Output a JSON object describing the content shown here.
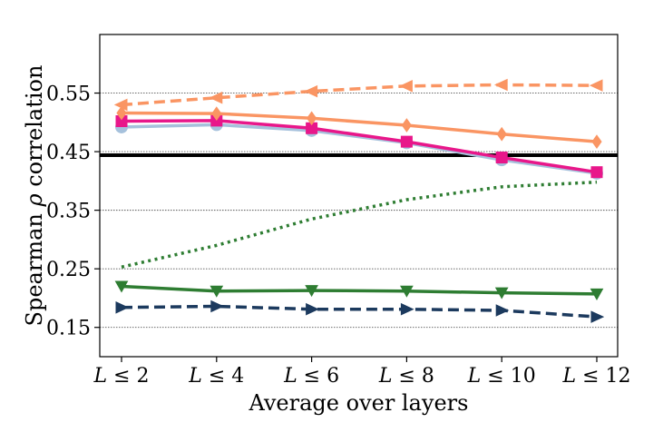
{
  "chart_data": {
    "type": "line",
    "title": "",
    "xlabel": "Average over layers",
    "ylabel_prefix": "Spearman ",
    "ylabel_symbol": "ρ",
    "ylabel_suffix": " correlation",
    "categories": [
      "L ≤ 2",
      "L ≤ 4",
      "L ≤ 6",
      "L ≤ 8",
      "L ≤ 10",
      "L ≤ 12"
    ],
    "ylim": [
      0.1,
      0.65
    ],
    "yticks": [
      0.15,
      0.25,
      0.35,
      0.45,
      0.55
    ],
    "ytick_labels": [
      "0.15",
      "0.25",
      "0.35",
      "0.45",
      "0.55"
    ],
    "grid": "horizontal dotted at y ticks",
    "reference_line": {
      "value": 0.444,
      "color": "#000000"
    },
    "series": [
      {
        "name": "series-light-blue",
        "color": "#a6c1dc",
        "dash": "solid",
        "marker": "circle",
        "values": [
          0.492,
          0.496,
          0.486,
          0.465,
          0.436,
          0.413
        ]
      },
      {
        "name": "series-magenta",
        "color": "#e8178a",
        "dash": "solid",
        "marker": "square",
        "values": [
          0.502,
          0.503,
          0.49,
          0.467,
          0.44,
          0.415
        ]
      },
      {
        "name": "series-orange-solid",
        "color": "#fa9563",
        "dash": "solid",
        "marker": "diamond",
        "values": [
          0.516,
          0.515,
          0.507,
          0.495,
          0.48,
          0.467
        ]
      },
      {
        "name": "series-orange-dashed",
        "color": "#fa9563",
        "dash": "dashed",
        "marker": "triangle-left",
        "values": [
          0.53,
          0.542,
          0.553,
          0.562,
          0.564,
          0.563
        ]
      },
      {
        "name": "series-green-dotted",
        "color": "#2e7d32",
        "dash": "dotted",
        "marker": "none",
        "values": [
          0.253,
          0.29,
          0.335,
          0.368,
          0.39,
          0.398
        ]
      },
      {
        "name": "series-green-solid",
        "color": "#2e7d32",
        "dash": "solid",
        "marker": "triangle-down",
        "values": [
          0.22,
          0.212,
          0.213,
          0.212,
          0.209,
          0.207
        ]
      },
      {
        "name": "series-navy-dashed",
        "color": "#1c3a5e",
        "dash": "dashed",
        "marker": "triangle-right",
        "values": [
          0.184,
          0.186,
          0.181,
          0.181,
          0.179,
          0.168
        ]
      }
    ]
  }
}
